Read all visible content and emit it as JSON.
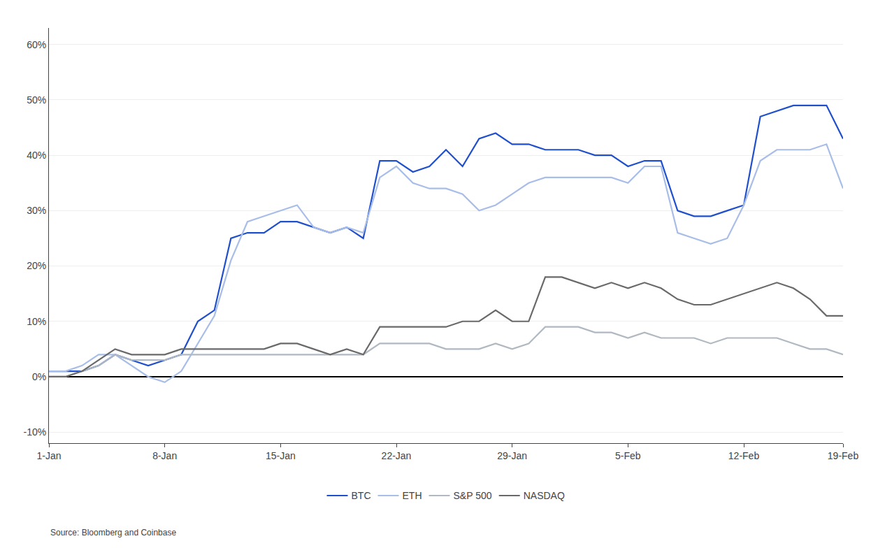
{
  "chart_data": {
    "type": "line",
    "categories": [
      "1-Jan",
      null,
      null,
      null,
      null,
      null,
      null,
      "8-Jan",
      null,
      null,
      null,
      null,
      null,
      null,
      "15-Jan",
      null,
      null,
      null,
      null,
      null,
      null,
      "22-Jan",
      null,
      null,
      null,
      null,
      null,
      null,
      "29-Jan",
      null,
      null,
      null,
      null,
      null,
      null,
      "5-Feb",
      null,
      null,
      null,
      null,
      null,
      null,
      "12-Feb",
      null,
      null,
      null,
      null,
      null,
      "19-Feb"
    ],
    "series": [
      {
        "name": "BTC",
        "color": "#1f4fcc",
        "values": [
          0.01,
          0.01,
          0.01,
          0.02,
          0.04,
          0.03,
          0.02,
          0.03,
          0.04,
          0.1,
          0.12,
          0.25,
          0.26,
          0.26,
          0.28,
          0.28,
          0.27,
          0.26,
          0.27,
          0.25,
          0.39,
          0.39,
          0.37,
          0.38,
          0.41,
          0.38,
          0.43,
          0.44,
          0.42,
          0.42,
          0.41,
          0.41,
          0.41,
          0.4,
          0.4,
          0.38,
          0.39,
          0.39,
          0.3,
          0.29,
          0.29,
          0.3,
          0.31,
          0.47,
          0.48,
          0.49,
          0.49,
          0.49,
          0.43
        ]
      },
      {
        "name": "ETH",
        "color": "#a8bde8",
        "values": [
          0.01,
          0.01,
          0.02,
          0.04,
          0.04,
          0.02,
          0.0,
          -0.01,
          0.01,
          0.06,
          0.11,
          0.21,
          0.28,
          0.29,
          0.3,
          0.31,
          0.27,
          0.26,
          0.27,
          0.26,
          0.36,
          0.38,
          0.35,
          0.34,
          0.34,
          0.33,
          0.3,
          0.31,
          0.33,
          0.35,
          0.36,
          0.36,
          0.36,
          0.36,
          0.36,
          0.35,
          0.38,
          0.38,
          0.26,
          0.25,
          0.24,
          0.25,
          0.31,
          0.39,
          0.41,
          0.41,
          0.41,
          0.42,
          0.34
        ]
      },
      {
        "name": "S&P 500",
        "color": "#b0b8c1",
        "values": [
          0.0,
          0.0,
          0.01,
          0.02,
          0.04,
          0.03,
          0.03,
          0.03,
          0.04,
          0.04,
          0.04,
          0.04,
          0.04,
          0.04,
          0.04,
          0.04,
          0.04,
          0.04,
          0.04,
          0.04,
          0.06,
          0.06,
          0.06,
          0.06,
          0.05,
          0.05,
          0.05,
          0.06,
          0.05,
          0.06,
          0.09,
          0.09,
          0.09,
          0.08,
          0.08,
          0.07,
          0.08,
          0.07,
          0.07,
          0.07,
          0.06,
          0.07,
          0.07,
          0.07,
          0.07,
          0.06,
          0.05,
          0.05,
          0.04
        ]
      },
      {
        "name": "NASDAQ",
        "color": "#696969",
        "values": [
          0.0,
          0.0,
          0.01,
          0.03,
          0.05,
          0.04,
          0.04,
          0.04,
          0.05,
          0.05,
          0.05,
          0.05,
          0.05,
          0.05,
          0.06,
          0.06,
          0.05,
          0.04,
          0.05,
          0.04,
          0.09,
          0.09,
          0.09,
          0.09,
          0.09,
          0.1,
          0.1,
          0.12,
          0.1,
          0.1,
          0.18,
          0.18,
          0.17,
          0.16,
          0.17,
          0.16,
          0.17,
          0.16,
          0.14,
          0.13,
          0.13,
          0.14,
          0.15,
          0.16,
          0.17,
          0.16,
          0.14,
          0.11,
          0.11
        ]
      }
    ],
    "ylim": [
      -0.12,
      0.63
    ],
    "yticks": [
      {
        "value": -0.1,
        "label": "-10%"
      },
      {
        "value": 0,
        "label": "0%"
      },
      {
        "value": 0.1,
        "label": "10%"
      },
      {
        "value": 0.2,
        "label": "20%"
      },
      {
        "value": 0.3,
        "label": "30%"
      },
      {
        "value": 0.4,
        "label": "40%"
      },
      {
        "value": 0.5,
        "label": "50%"
      },
      {
        "value": 0.6,
        "label": "60%"
      }
    ],
    "grid": "y",
    "legend": "bottom",
    "annotations": [
      "Source: Bloomberg and Coinbase"
    ]
  }
}
